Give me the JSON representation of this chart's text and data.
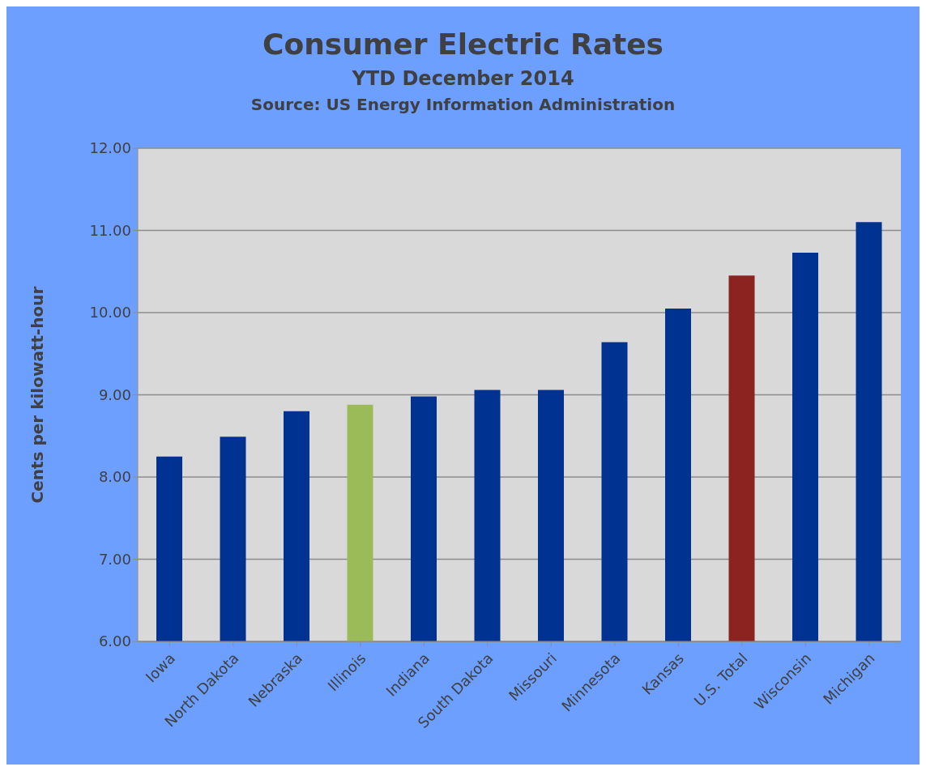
{
  "chart_data": {
    "type": "bar",
    "title": "Consumer Electric Rates",
    "subtitle": "YTD December 2014",
    "annotations": [
      "Source: US Energy Information Administration"
    ],
    "ylabel": "Cents per kilowatt-hour",
    "categories": [
      "Iowa",
      "North Dakota",
      "Nebraska",
      "Illinois",
      "Indiana",
      "South Dakota",
      "Missouri",
      "Minnesota",
      "Kansas",
      "U.S. Total",
      "Wisconsin",
      "Michigan"
    ],
    "values": [
      8.25,
      8.49,
      8.8,
      8.88,
      8.98,
      9.06,
      9.06,
      9.64,
      10.05,
      10.45,
      10.73,
      11.1
    ],
    "colors": [
      "#003391",
      "#003391",
      "#003391",
      "#9bbb59",
      "#003391",
      "#003391",
      "#003391",
      "#003391",
      "#003391",
      "#8b2320",
      "#003391",
      "#003391"
    ],
    "ylim": [
      6,
      12
    ],
    "yticks": [
      {
        "value": 6,
        "label": "6.00"
      },
      {
        "value": 7,
        "label": "7.00"
      },
      {
        "value": 8,
        "label": "8.00"
      },
      {
        "value": 9,
        "label": "9.00"
      },
      {
        "value": 10,
        "label": "10.00"
      },
      {
        "value": 11,
        "label": "11.00"
      },
      {
        "value": 12,
        "label": "12.00"
      }
    ],
    "grid": "y"
  }
}
